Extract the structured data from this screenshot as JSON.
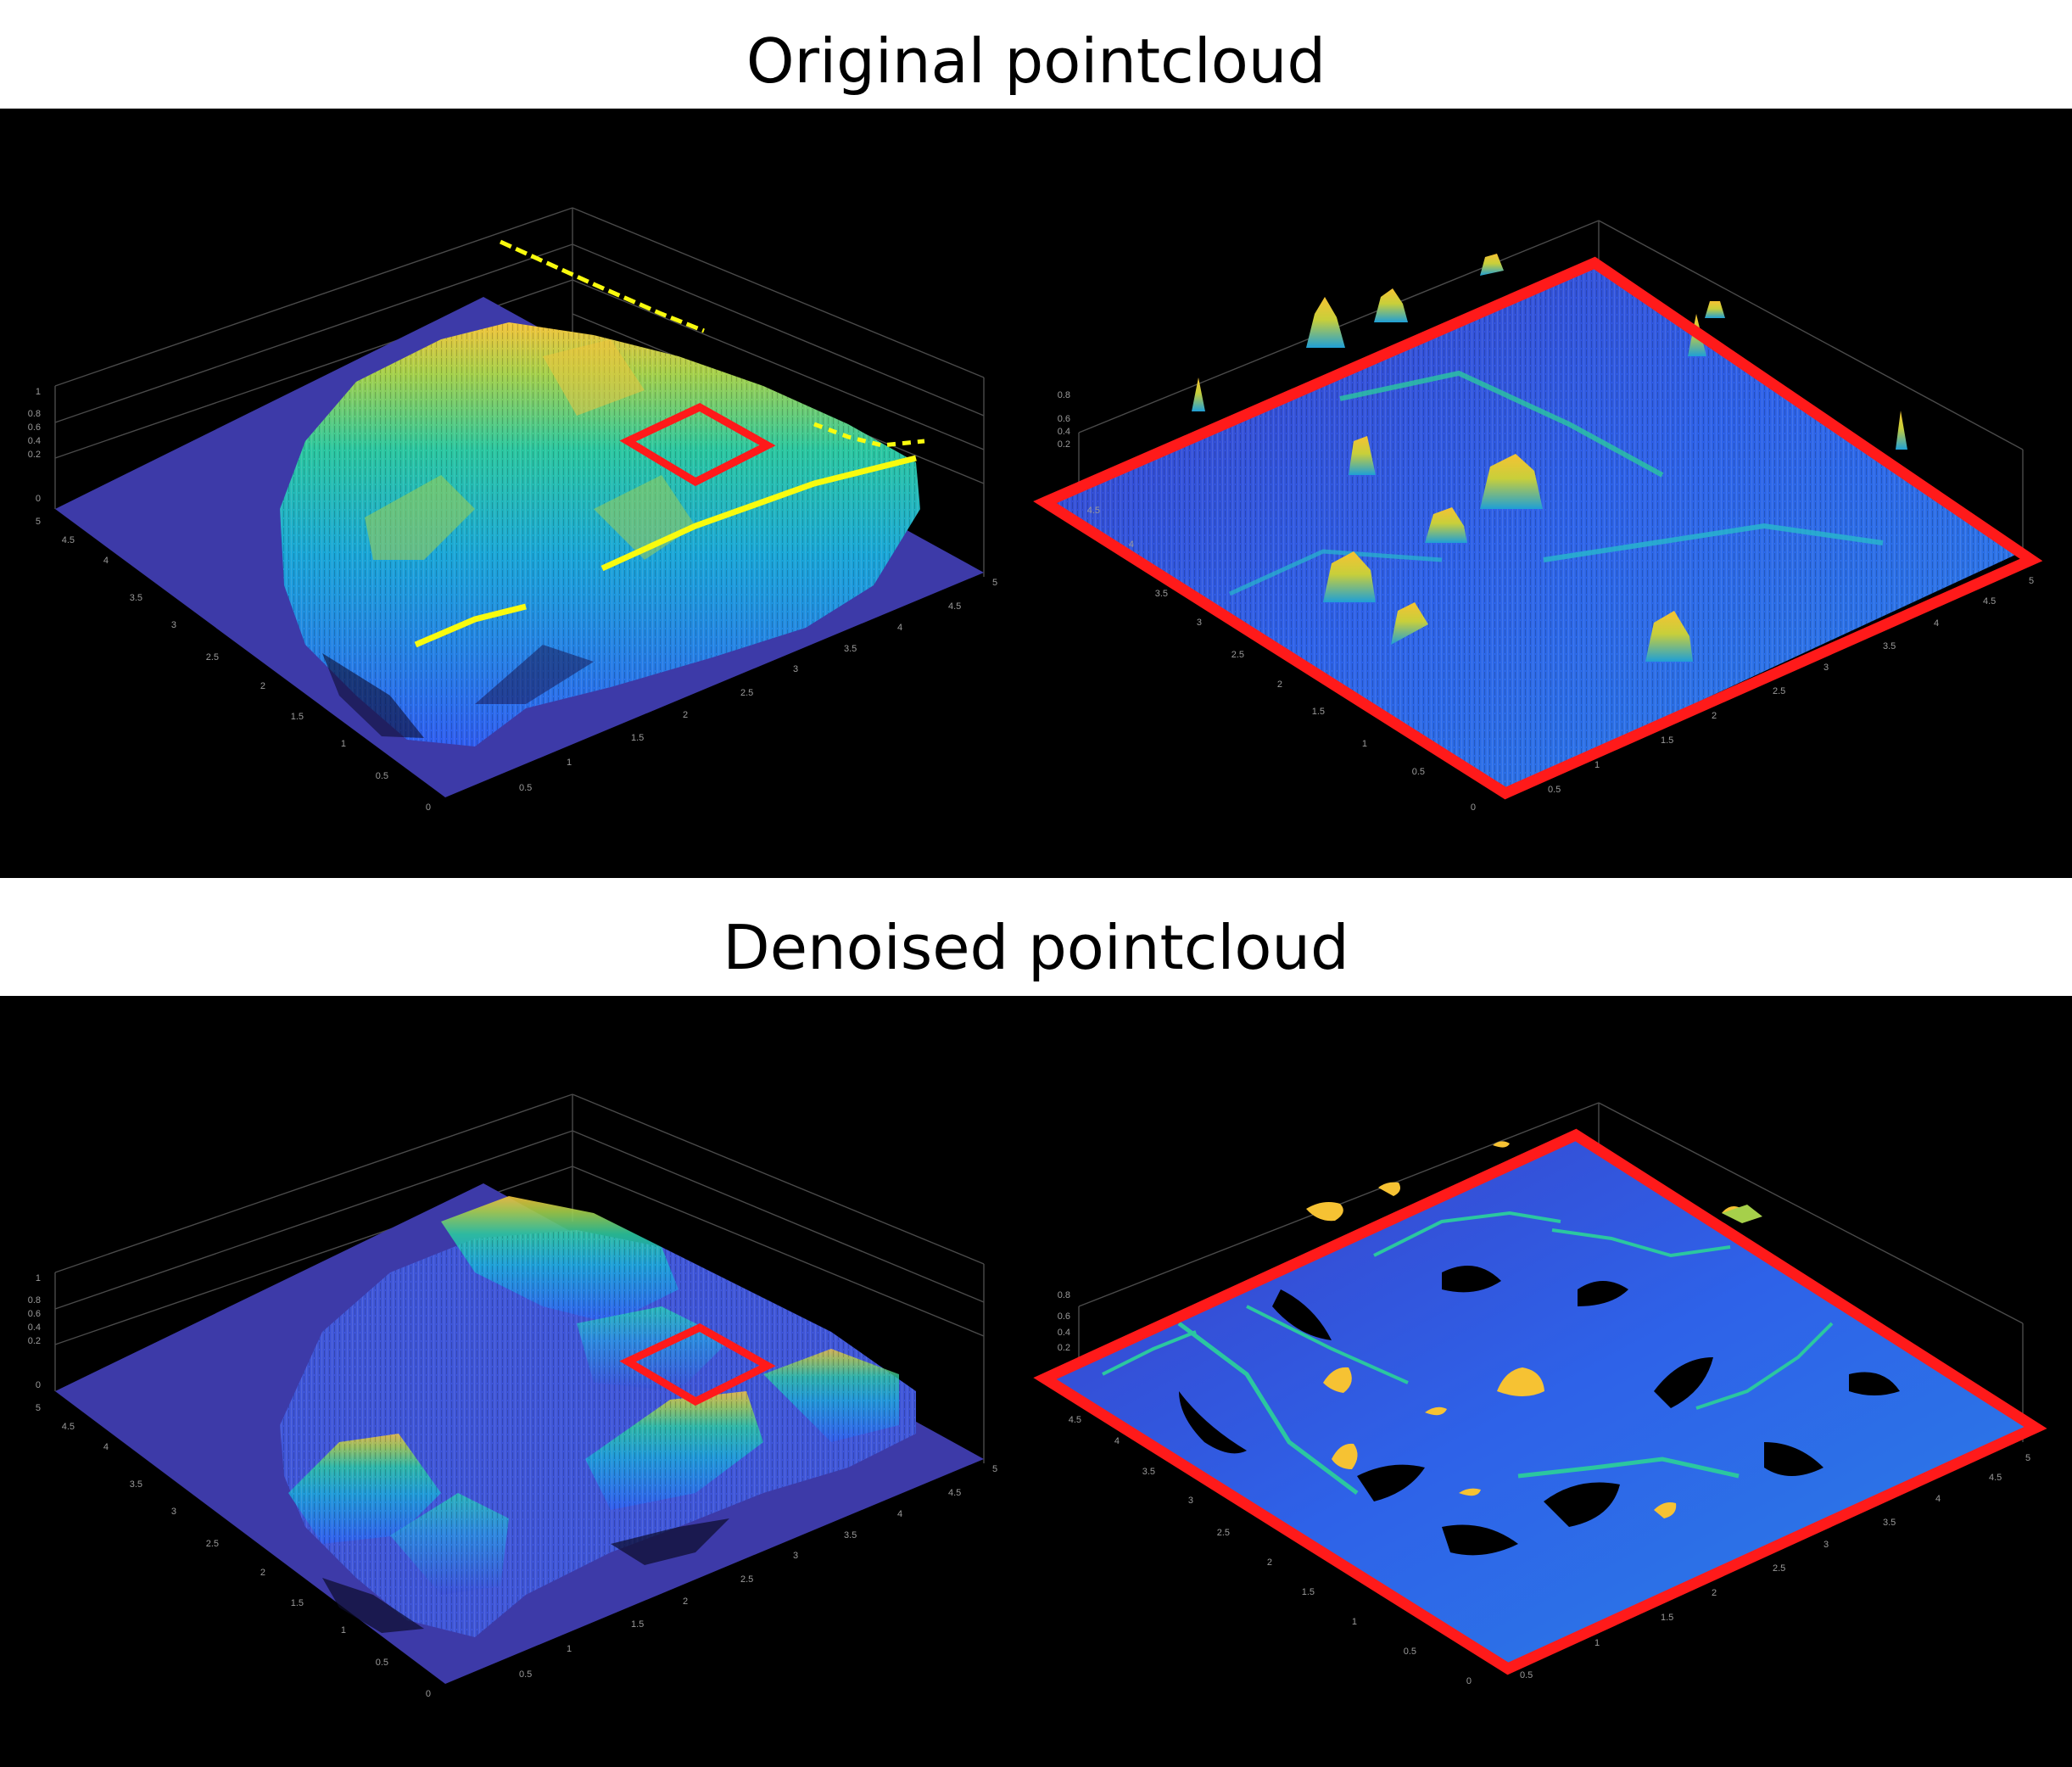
{
  "titles": {
    "top": "Original pointcloud",
    "bottom": "Denoised pointcloud"
  },
  "colors": {
    "background": "#000000",
    "highlight_box": "#ff1a1a",
    "ground": "#3d3aa8",
    "colormap": [
      "#3e26a8",
      "#2f5df0",
      "#1aa6d8",
      "#2bc7a0",
      "#a6d04a",
      "#f4c33a",
      "#f9fb0e"
    ]
  },
  "axis_ticks": {
    "z_left": [
      "1",
      "0.8",
      "0.6",
      "0.4",
      "0.2",
      "0"
    ],
    "y_left": [
      "5",
      "4.5",
      "4",
      "3.5",
      "3",
      "2.5",
      "2",
      "1.5",
      "1",
      "0.5",
      "0"
    ],
    "x_left": [
      "0.5",
      "1",
      "1.5",
      "2",
      "2.5",
      "3",
      "3.5",
      "4",
      "4.5",
      "5"
    ],
    "z_right": [
      "0.8",
      "0.6",
      "0.4",
      "0.2"
    ],
    "y_right": [
      "4.5",
      "4",
      "3.5",
      "3",
      "2.5",
      "2",
      "1.5",
      "1",
      "0.5",
      "0"
    ],
    "x_right": [
      "0.5",
      "1",
      "1.5",
      "2",
      "2.5",
      "3",
      "3.5",
      "4",
      "4.5",
      "5"
    ]
  },
  "panels": [
    {
      "id": "original-full"
    },
    {
      "id": "original-zoom"
    },
    {
      "id": "denoised-full"
    },
    {
      "id": "denoised-zoom"
    }
  ]
}
